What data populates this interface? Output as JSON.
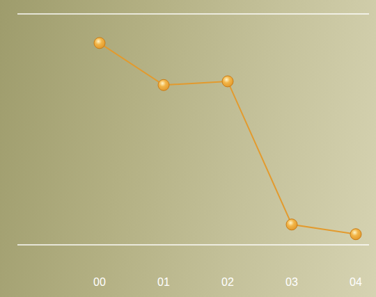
{
  "chart_data": {
    "type": "line",
    "categories": [
      "00",
      "01",
      "02",
      "03",
      "04"
    ],
    "values": [
      4.37,
      3.46,
      3.54,
      0.44,
      0.23
    ],
    "ylim": [
      0,
      5
    ],
    "yticks": [
      0,
      1,
      2,
      3,
      4,
      5
    ],
    "grid": true,
    "tick_labels": "x",
    "color": "#e39a2d",
    "marker": "circle",
    "line_style": "solid"
  }
}
